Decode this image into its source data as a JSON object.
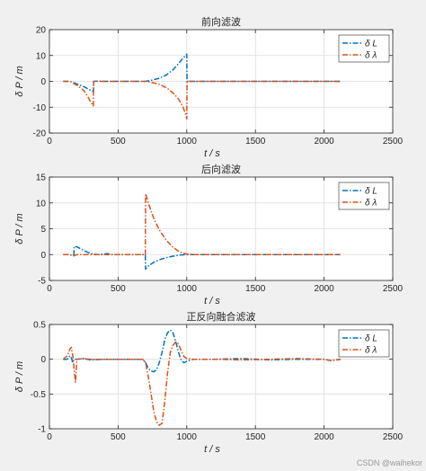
{
  "figure": {
    "watermark": "CSDN @waihekor",
    "colors": {
      "background": "#f0f0f0",
      "axes": "#ffffff",
      "grid": "#dcdcdc",
      "series_L": "#0072BD",
      "series_lambda": "#D95319"
    }
  },
  "chart_data": [
    {
      "type": "line",
      "title": "前向滤波",
      "xlabel": "t / s",
      "ylabel": "δ P / m",
      "xlim": [
        0,
        2500
      ],
      "ylim": [
        -20,
        20
      ],
      "xticks": [
        0,
        500,
        1000,
        1500,
        2000,
        2500
      ],
      "yticks": [
        -20,
        -10,
        0,
        10,
        20
      ],
      "grid": true,
      "legend_location": "top-right",
      "series": [
        {
          "name": "δ L",
          "color": "#0072BD",
          "style": "dash-dot",
          "x": [
            100,
            150,
            200,
            250,
            300,
            320,
            322,
            350,
            400,
            500,
            600,
            700,
            750,
            800,
            850,
            900,
            940,
            970,
            990,
            1000,
            1002,
            1050,
            1500,
            2000,
            2120
          ],
          "y": [
            0,
            0,
            -1,
            -2,
            -3.5,
            -4,
            0,
            0.1,
            0,
            0,
            0,
            0,
            0.5,
            1.2,
            2.4,
            4.5,
            6.8,
            8.8,
            10,
            10.5,
            0,
            0,
            0,
            0,
            0
          ]
        },
        {
          "name": "δ λ",
          "color": "#D95319",
          "style": "dash-dot",
          "x": [
            100,
            150,
            200,
            250,
            280,
            300,
            320,
            322,
            350,
            400,
            500,
            600,
            700,
            750,
            800,
            850,
            900,
            940,
            970,
            990,
            1000,
            1002,
            1050,
            1500,
            2000,
            2120
          ],
          "y": [
            0,
            0,
            -1.5,
            -3.5,
            -6,
            -8,
            -9.5,
            0,
            0,
            0,
            0,
            0,
            0,
            -0.5,
            -1.2,
            -2.4,
            -4.5,
            -6.8,
            -9.5,
            -12.5,
            -14.5,
            0,
            0,
            0,
            0,
            0
          ]
        }
      ]
    },
    {
      "type": "line",
      "title": "后向滤波",
      "xlabel": "t / s",
      "ylabel": "δ P / m",
      "xlim": [
        0,
        2500
      ],
      "ylim": [
        -5,
        15
      ],
      "xticks": [
        0,
        500,
        1000,
        1500,
        2000,
        2500
      ],
      "yticks": [
        -5,
        0,
        5,
        10,
        15
      ],
      "grid": true,
      "legend_location": "top-right",
      "series": [
        {
          "name": "δ L",
          "color": "#0072BD",
          "style": "dash-dot",
          "x": [
            100,
            150,
            170,
            178,
            180,
            200,
            250,
            300,
            350,
            400,
            420,
            450,
            500,
            600,
            690,
            698,
            700,
            720,
            760,
            800,
            850,
            900,
            950,
            1000,
            1050,
            1500,
            2000,
            2120
          ],
          "y": [
            0,
            0,
            -0.2,
            0,
            1.6,
            1.5,
            0.8,
            0.2,
            0,
            0.1,
            0.2,
            0,
            0,
            0,
            0,
            0,
            -2.8,
            -2.2,
            -1.5,
            -1,
            -0.6,
            -0.3,
            -0.1,
            0,
            0,
            0,
            0,
            0
          ]
        },
        {
          "name": "δ λ",
          "color": "#D95319",
          "style": "dash-dot",
          "x": [
            100,
            150,
            170,
            200,
            250,
            300,
            400,
            500,
            600,
            690,
            698,
            700,
            720,
            760,
            800,
            850,
            900,
            950,
            1000,
            1050,
            1500,
            2000,
            2120
          ],
          "y": [
            0,
            0,
            -0.3,
            0,
            0,
            0,
            0,
            0,
            0,
            0,
            0,
            11.8,
            10,
            7,
            4.8,
            2.8,
            1.4,
            0.5,
            0.1,
            0,
            0,
            0,
            0
          ]
        }
      ]
    },
    {
      "type": "line",
      "title": "正反向融合滤波",
      "xlabel": "t / s",
      "ylabel": "δ P / m",
      "xlim": [
        0,
        2500
      ],
      "ylim": [
        -1,
        0.5
      ],
      "xticks": [
        0,
        500,
        1000,
        1500,
        2000,
        2500
      ],
      "yticks": [
        -1,
        -0.5,
        0,
        0.5
      ],
      "grid": true,
      "legend_location": "top-right",
      "series": [
        {
          "name": "δ L",
          "color": "#0072BD",
          "style": "dash-dot",
          "x": [
            100,
            130,
            150,
            160,
            170,
            180,
            200,
            250,
            300,
            400,
            500,
            600,
            680,
            700,
            720,
            740,
            760,
            780,
            800,
            820,
            840,
            860,
            880,
            900,
            920,
            940,
            960,
            980,
            1000,
            1050,
            1200,
            1400,
            1600,
            1800,
            2000,
            2050,
            2120
          ],
          "y": [
            0,
            0,
            0.05,
            0.02,
            -0.05,
            0,
            0,
            0.01,
            -0.01,
            0,
            0,
            0,
            0,
            -0.05,
            -0.13,
            -0.17,
            -0.18,
            -0.15,
            -0.05,
            0.1,
            0.28,
            0.38,
            0.42,
            0.38,
            0.25,
            0.1,
            -0.02,
            -0.05,
            -0.03,
            0,
            0,
            0.01,
            -0.01,
            0,
            0,
            -0.02,
            0
          ]
        },
        {
          "name": "δ λ",
          "color": "#D95319",
          "style": "dash-dot",
          "x": [
            100,
            130,
            150,
            160,
            170,
            180,
            190,
            200,
            250,
            300,
            400,
            500,
            600,
            680,
            700,
            720,
            740,
            760,
            780,
            800,
            820,
            840,
            860,
            880,
            900,
            920,
            940,
            960,
            980,
            1000,
            1050,
            1200,
            1400,
            1600,
            1800,
            2000,
            2050,
            2120
          ],
          "y": [
            0,
            0.05,
            0.15,
            0.17,
            0.05,
            -0.15,
            -0.33,
            0,
            0.01,
            0,
            0,
            0,
            0,
            0,
            -0.05,
            -0.25,
            -0.5,
            -0.75,
            -0.9,
            -0.95,
            -0.92,
            -0.6,
            -0.2,
            0.1,
            0.2,
            0.25,
            0.22,
            0.12,
            0.04,
            0.01,
            0,
            0,
            -0.01,
            0,
            0.01,
            0,
            -0.02,
            0
          ]
        }
      ]
    }
  ]
}
